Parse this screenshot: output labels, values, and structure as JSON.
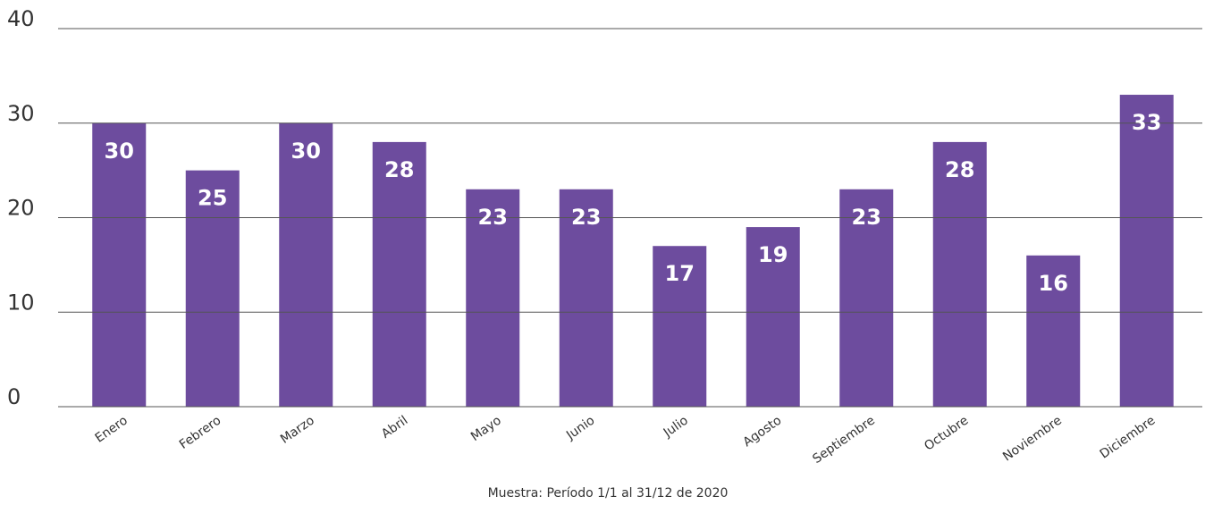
{
  "chart_data": {
    "type": "bar",
    "categories": [
      "Enero",
      "Febrero",
      "Marzo",
      "Abril",
      "Mayo",
      "Junio",
      "Julio",
      "Agosto",
      "Septiembre",
      "Octubre",
      "Noviembre",
      "Diciembre"
    ],
    "values": [
      30,
      25,
      30,
      28,
      23,
      23,
      17,
      19,
      23,
      28,
      16,
      33
    ],
    "color": "#6d4c9e",
    "ylim": [
      0,
      40
    ],
    "yticks": [
      0,
      10,
      20,
      30,
      40
    ],
    "grid": true,
    "note": "Muestra: Período 1/1 al 31/12 de 2020"
  }
}
